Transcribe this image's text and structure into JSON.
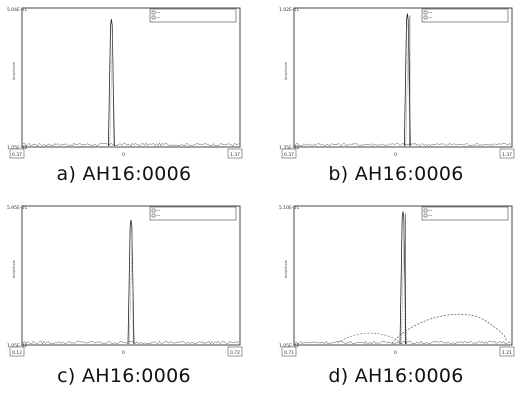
{
  "chart_data": [
    {
      "type": "line",
      "caption": "a) AH16:0006",
      "ymax_label": "5.04E-01",
      "ymin_label": "1.05E-02",
      "ylabel": "Amplitude",
      "x_ticks": [
        "0.37",
        "0",
        "1.37"
      ],
      "legend": [
        "Sweep_Helmholtz 1.16 (FFT=3000) - ΔT",
        "Sweep_AH16:0006 ΔT"
      ],
      "peak_x": 0.41,
      "peak_height": 0.92,
      "secondary_hump": false
    },
    {
      "type": "line",
      "caption": "b) AH16:0006",
      "ymax_label": "1.02E-01",
      "ymin_label": "1.35E-02",
      "ylabel": "Amplitude",
      "x_ticks": [
        "0.37",
        "0",
        "1.37"
      ],
      "legend": [
        "Sweep_Helmholtz 1.16 (FFT=3000) - ΔT",
        "Sweep_AH16:0006 ΔT"
      ],
      "peak_x": 0.52,
      "peak_height": 0.96,
      "secondary_hump": false
    },
    {
      "type": "line",
      "caption": "c) AH16:0006",
      "ymax_label": "5.95E-01",
      "ymin_label": "1.05E-02",
      "ylabel": "Amplitude",
      "x_ticks": [
        "0.12",
        "0",
        "0.72"
      ],
      "legend": [
        "Sweep_Helmholtz 1.16 (FFT=3000) - ΔT",
        "Sweep_AH16:0006 ΔT"
      ],
      "peak_x": 0.5,
      "peak_height": 0.9,
      "secondary_hump": false
    },
    {
      "type": "line",
      "caption": "d) AH16:0006",
      "ymax_label": "5.10E-01",
      "ymin_label": "1.05E-02",
      "ylabel": "Amplitude",
      "x_ticks": [
        "0.71",
        "0",
        "1.21"
      ],
      "legend": [
        "Sweep_Helmholtz 1.16 (FFT=3000) - ΔT",
        "Sweep_AH16:0006 ΔT"
      ],
      "peak_x": 0.5,
      "peak_height": 0.96,
      "secondary_hump": true
    }
  ]
}
